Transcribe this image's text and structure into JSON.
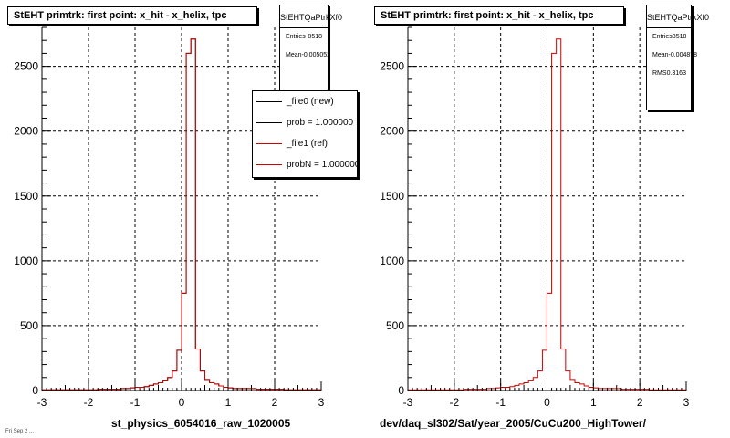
{
  "panels": [
    {
      "title": "StEHT primtrk: first point: x_hit - x_helix, tpc",
      "stats": {
        "name": "StEHTQaPtrkXf0",
        "rows": [
          {
            "label": "Entries",
            "value": "8518"
          },
          {
            "label": "Mean",
            "value": "-0.005052"
          }
        ]
      },
      "legend": [
        {
          "label": "_file0 (new)",
          "color": "#000000"
        },
        {
          "label": "prob = 1.000000",
          "color": "#000000"
        },
        {
          "label": "_file1 (ref)",
          "color": "#cc0000"
        },
        {
          "label": "probN = 1.000000",
          "color": "#cc0000"
        }
      ],
      "footer": "st_physics_6054016_raw_1020005"
    },
    {
      "title": "StEHT primtrk: first point: x_hit - x_helix, tpc",
      "stats": {
        "name": "StEHTQaPtrkXf0",
        "rows": [
          {
            "label": "Entries",
            "value": "8518"
          },
          {
            "label": "Mean",
            "value": "-0.004878"
          },
          {
            "label": "RMS",
            "value": "0.3163"
          }
        ]
      },
      "footer": "dev/daq_sl302/Sat/year_2005/CuCu200_HighTower/"
    }
  ],
  "corner_text": "Fri Sep 2 ...",
  "chart_data": [
    {
      "type": "histogram",
      "title": "StEHT primtrk: first point: x_hit - x_helix, tpc",
      "xlim": [
        -3,
        3
      ],
      "ylim": [
        0,
        2800
      ],
      "xticks": [
        -3,
        -2,
        -1,
        0,
        1,
        2,
        3
      ],
      "yticks": [
        0,
        500,
        1000,
        1500,
        2000,
        2500
      ],
      "grid": true,
      "legend_position": "top-right",
      "bin_width": 0.1,
      "bin_start": -3.0,
      "series": [
        {
          "name": "_file0 (new)",
          "color": "#000000",
          "values": [
            5,
            5,
            5,
            5,
            5,
            5,
            5,
            5,
            5,
            5,
            5,
            5,
            10,
            10,
            10,
            10,
            10,
            15,
            15,
            20,
            25,
            25,
            30,
            40,
            50,
            60,
            80,
            100,
            150,
            310,
            750,
            2600,
            2710,
            320,
            150,
            85,
            60,
            50,
            35,
            25,
            20,
            15,
            15,
            15,
            15,
            15,
            10,
            10,
            10,
            10,
            10,
            10,
            5,
            5,
            5,
            5,
            5,
            5,
            5,
            5
          ]
        },
        {
          "name": "_file1 (ref)",
          "color": "#cc0000",
          "values": [
            5,
            5,
            5,
            5,
            5,
            5,
            5,
            5,
            5,
            5,
            5,
            5,
            10,
            10,
            10,
            10,
            10,
            15,
            15,
            20,
            25,
            25,
            30,
            40,
            50,
            60,
            80,
            100,
            150,
            310,
            750,
            2600,
            2710,
            320,
            150,
            85,
            60,
            50,
            35,
            25,
            20,
            15,
            15,
            15,
            15,
            15,
            10,
            10,
            10,
            10,
            10,
            10,
            5,
            5,
            5,
            5,
            5,
            5,
            5,
            5
          ]
        }
      ]
    },
    {
      "type": "histogram",
      "title": "StEHT primtrk: first point: x_hit - x_helix, tpc",
      "xlim": [
        -3,
        3
      ],
      "ylim": [
        0,
        2800
      ],
      "xticks": [
        -3,
        -2,
        -1,
        0,
        1,
        2,
        3
      ],
      "yticks": [
        0,
        500,
        1000,
        1500,
        2000,
        2500
      ],
      "grid": true,
      "bin_width": 0.1,
      "bin_start": -3.0,
      "series": [
        {
          "name": "",
          "color": "#cc0000",
          "values": [
            5,
            5,
            5,
            5,
            5,
            5,
            5,
            5,
            5,
            5,
            5,
            5,
            10,
            10,
            10,
            10,
            10,
            15,
            15,
            20,
            25,
            25,
            30,
            40,
            50,
            60,
            80,
            100,
            150,
            310,
            750,
            2600,
            2710,
            320,
            150,
            85,
            60,
            50,
            35,
            25,
            20,
            15,
            15,
            15,
            15,
            15,
            10,
            10,
            10,
            10,
            10,
            10,
            5,
            5,
            5,
            5,
            5,
            5,
            5,
            5
          ]
        }
      ]
    }
  ]
}
